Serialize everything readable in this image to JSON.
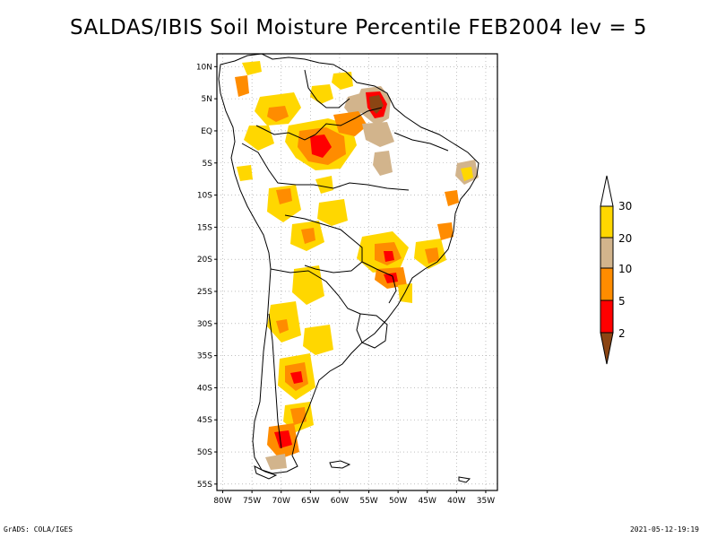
{
  "title": "SALDAS/IBIS Soil Moisture Percentile FEB2004 lev = 5",
  "map": {
    "lat_ticks": [
      {
        "value": 10,
        "label": "10N"
      },
      {
        "value": 5,
        "label": "5N"
      },
      {
        "value": 0,
        "label": "EQ"
      },
      {
        "value": -5,
        "label": "5S"
      },
      {
        "value": -10,
        "label": "10S"
      },
      {
        "value": -15,
        "label": "15S"
      },
      {
        "value": -20,
        "label": "20S"
      },
      {
        "value": -25,
        "label": "25S"
      },
      {
        "value": -30,
        "label": "30S"
      },
      {
        "value": -35,
        "label": "35S"
      },
      {
        "value": -40,
        "label": "40S"
      },
      {
        "value": -45,
        "label": "45S"
      },
      {
        "value": -50,
        "label": "50S"
      },
      {
        "value": -55,
        "label": "55S"
      }
    ],
    "lon_ticks": [
      {
        "value": -80,
        "label": "80W"
      },
      {
        "value": -75,
        "label": "75W"
      },
      {
        "value": -70,
        "label": "70W"
      },
      {
        "value": -65,
        "label": "65W"
      },
      {
        "value": -60,
        "label": "60W"
      },
      {
        "value": -55,
        "label": "55W"
      },
      {
        "value": -50,
        "label": "50W"
      },
      {
        "value": -45,
        "label": "45W"
      },
      {
        "value": -40,
        "label": "40W"
      },
      {
        "value": -35,
        "label": "35W"
      }
    ],
    "lon_range": [
      -81,
      -33
    ],
    "lat_range": [
      -56,
      12
    ],
    "grid": true
  },
  "colorbar": {
    "labels": [
      "30",
      "20",
      "10",
      "5",
      "2"
    ],
    "colors": {
      "c30": "#ffffff",
      "c20_30": "#ffd700",
      "c10_20": "#d2b48c",
      "c5_10": "#ff8c00",
      "c2_5": "#ff0000",
      "c0_2": "#8b4513"
    }
  },
  "footer": {
    "left": "GrADS: COLA/IGES",
    "right": "2021-05-12-19:19"
  }
}
